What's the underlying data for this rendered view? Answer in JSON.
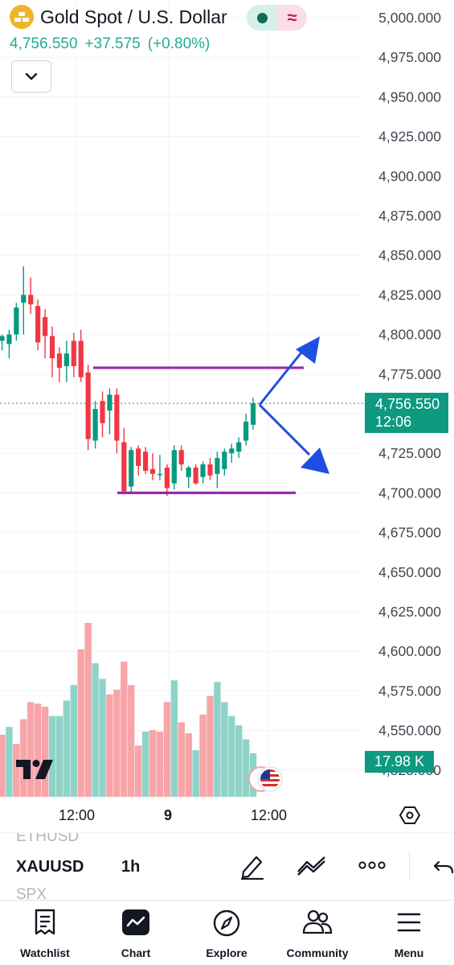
{
  "header": {
    "symbol_title": "Gold Spot / U.S. Dollar",
    "last_price": "4,756.550",
    "change": "+37.575",
    "change_pct": "(+0.80%)",
    "status_right_glyph": "≈"
  },
  "price_tag": {
    "price": "4,756.550",
    "countdown": "12:06"
  },
  "volume_tag": {
    "value": "17.98 K"
  },
  "chart_data": {
    "type": "candlestick",
    "y_axis_labels": [
      "5,000.000",
      "4,975.000",
      "4,950.000",
      "4,925.000",
      "4,900.000",
      "4,875.000",
      "4,850.000",
      "4,825.000",
      "4,800.000",
      "4,775.000",
      "4,750.000",
      "4,725.000",
      "4,700.000",
      "4,675.000",
      "4,650.000",
      "4,625.000",
      "4,600.000",
      "4,575.000",
      "4,550.000",
      "4,525.000"
    ],
    "ylim": [
      4525,
      5000
    ],
    "x_axis_labels": [
      "12:00",
      "9",
      "12:00"
    ],
    "current_price": 4756.55,
    "candles": [
      {
        "o": 4796,
        "h": 4800,
        "l": 4790,
        "c": 4799
      },
      {
        "o": 4794,
        "h": 4803,
        "l": 4785,
        "c": 4800
      },
      {
        "o": 4800,
        "h": 4820,
        "l": 4796,
        "c": 4817
      },
      {
        "o": 4820,
        "h": 4843,
        "l": 4800,
        "c": 4825
      },
      {
        "o": 4825,
        "h": 4836,
        "l": 4813,
        "c": 4819
      },
      {
        "o": 4818,
        "h": 4822,
        "l": 4790,
        "c": 4795
      },
      {
        "o": 4811,
        "h": 4816,
        "l": 4785,
        "c": 4799
      },
      {
        "o": 4799,
        "h": 4805,
        "l": 4773,
        "c": 4785
      },
      {
        "o": 4788,
        "h": 4792,
        "l": 4770,
        "c": 4779
      },
      {
        "o": 4780,
        "h": 4796,
        "l": 4770,
        "c": 4788
      },
      {
        "o": 4796,
        "h": 4801,
        "l": 4773,
        "c": 4780
      },
      {
        "o": 4796,
        "h": 4803,
        "l": 4770,
        "c": 4773
      },
      {
        "o": 4776,
        "h": 4781,
        "l": 4727,
        "c": 4734
      },
      {
        "o": 4733,
        "h": 4758,
        "l": 4728,
        "c": 4753
      },
      {
        "o": 4758,
        "h": 4764,
        "l": 4735,
        "c": 4744
      },
      {
        "o": 4752,
        "h": 4766,
        "l": 4737,
        "c": 4762
      },
      {
        "o": 4762,
        "h": 4766,
        "l": 4725,
        "c": 4733
      },
      {
        "o": 4732,
        "h": 4741,
        "l": 4700,
        "c": 4701
      },
      {
        "o": 4704,
        "h": 4729,
        "l": 4700,
        "c": 4727
      },
      {
        "o": 4728,
        "h": 4730,
        "l": 4711,
        "c": 4717
      },
      {
        "o": 4726,
        "h": 4729,
        "l": 4712,
        "c": 4714
      },
      {
        "o": 4715,
        "h": 4725,
        "l": 4708,
        "c": 4712
      },
      {
        "o": 4712,
        "h": 4724,
        "l": 4708,
        "c": 4712
      },
      {
        "o": 4716,
        "h": 4718,
        "l": 4698,
        "c": 4703
      },
      {
        "o": 4706,
        "h": 4730,
        "l": 4702,
        "c": 4727
      },
      {
        "o": 4727,
        "h": 4730,
        "l": 4714,
        "c": 4718
      },
      {
        "o": 4710,
        "h": 4717,
        "l": 4703,
        "c": 4716
      },
      {
        "o": 4716,
        "h": 4718,
        "l": 4705,
        "c": 4706
      },
      {
        "o": 4710,
        "h": 4720,
        "l": 4706,
        "c": 4718
      },
      {
        "o": 4718,
        "h": 4722,
        "l": 4708,
        "c": 4711
      },
      {
        "o": 4712,
        "h": 4726,
        "l": 4703,
        "c": 4722
      },
      {
        "o": 4715,
        "h": 4728,
        "l": 4711,
        "c": 4726
      },
      {
        "o": 4725,
        "h": 4731,
        "l": 4719,
        "c": 4728
      },
      {
        "o": 4726,
        "h": 4735,
        "l": 4722,
        "c": 4732
      },
      {
        "o": 4733,
        "h": 4750,
        "l": 4730,
        "c": 4745
      },
      {
        "o": 4743,
        "h": 4760,
        "l": 4740,
        "c": 4756.55
      }
    ],
    "volumes": [
      {
        "v": 0.4,
        "up": false
      },
      {
        "v": 0.45,
        "up": true
      },
      {
        "v": 0.34,
        "up": false
      },
      {
        "v": 0.5,
        "up": false
      },
      {
        "v": 0.61,
        "up": false
      },
      {
        "v": 0.6,
        "up": false
      },
      {
        "v": 0.58,
        "up": false
      },
      {
        "v": 0.52,
        "up": true
      },
      {
        "v": 0.52,
        "up": true
      },
      {
        "v": 0.62,
        "up": true
      },
      {
        "v": 0.72,
        "up": true
      },
      {
        "v": 0.95,
        "up": false
      },
      {
        "v": 1.12,
        "up": false
      },
      {
        "v": 0.86,
        "up": true
      },
      {
        "v": 0.76,
        "up": true
      },
      {
        "v": 0.66,
        "up": false
      },
      {
        "v": 0.69,
        "up": false
      },
      {
        "v": 0.87,
        "up": false
      },
      {
        "v": 0.72,
        "up": false
      },
      {
        "v": 0.33,
        "up": false
      },
      {
        "v": 0.42,
        "up": true
      },
      {
        "v": 0.43,
        "up": false
      },
      {
        "v": 0.42,
        "up": false
      },
      {
        "v": 0.61,
        "up": false
      },
      {
        "v": 0.75,
        "up": true
      },
      {
        "v": 0.48,
        "up": false
      },
      {
        "v": 0.41,
        "up": false
      },
      {
        "v": 0.3,
        "up": true
      },
      {
        "v": 0.53,
        "up": false
      },
      {
        "v": 0.65,
        "up": false
      },
      {
        "v": 0.74,
        "up": true
      },
      {
        "v": 0.61,
        "up": true
      },
      {
        "v": 0.52,
        "up": true
      },
      {
        "v": 0.46,
        "up": true
      },
      {
        "v": 0.37,
        "up": true
      },
      {
        "v": 0.28,
        "up": true
      }
    ],
    "annotations": {
      "resistance_level": 4779,
      "support_level": 4700,
      "arrows": [
        "bullish-up-arrow",
        "bearish-down-arrow"
      ]
    },
    "colors": {
      "up": "#089981",
      "down": "#f23645",
      "vol_up": "#8fd3c8",
      "vol_down": "#f7a5a8",
      "level_line": "#9c27b0",
      "arrow": "#1f4fe0",
      "grid": "#f0f3fa"
    }
  },
  "time_axis": {
    "labels": [
      "12:00",
      "9",
      "12:00"
    ]
  },
  "symbol_strip": {
    "prev_symbol": "ETHUSD",
    "current_symbol": "XAUUSD",
    "next_symbol": "SPX",
    "interval": "1h",
    "tools": [
      "draw-pen-icon",
      "trend-line-icon",
      "more-dots-icon",
      "undo-icon"
    ]
  },
  "bottom_nav": {
    "items": [
      {
        "label": "Watchlist",
        "icon": "watchlist-icon"
      },
      {
        "label": "Chart",
        "icon": "chart-icon"
      },
      {
        "label": "Explore",
        "icon": "compass-icon"
      },
      {
        "label": "Community",
        "icon": "community-icon"
      },
      {
        "label": "Menu",
        "icon": "menu-icon"
      }
    ]
  }
}
